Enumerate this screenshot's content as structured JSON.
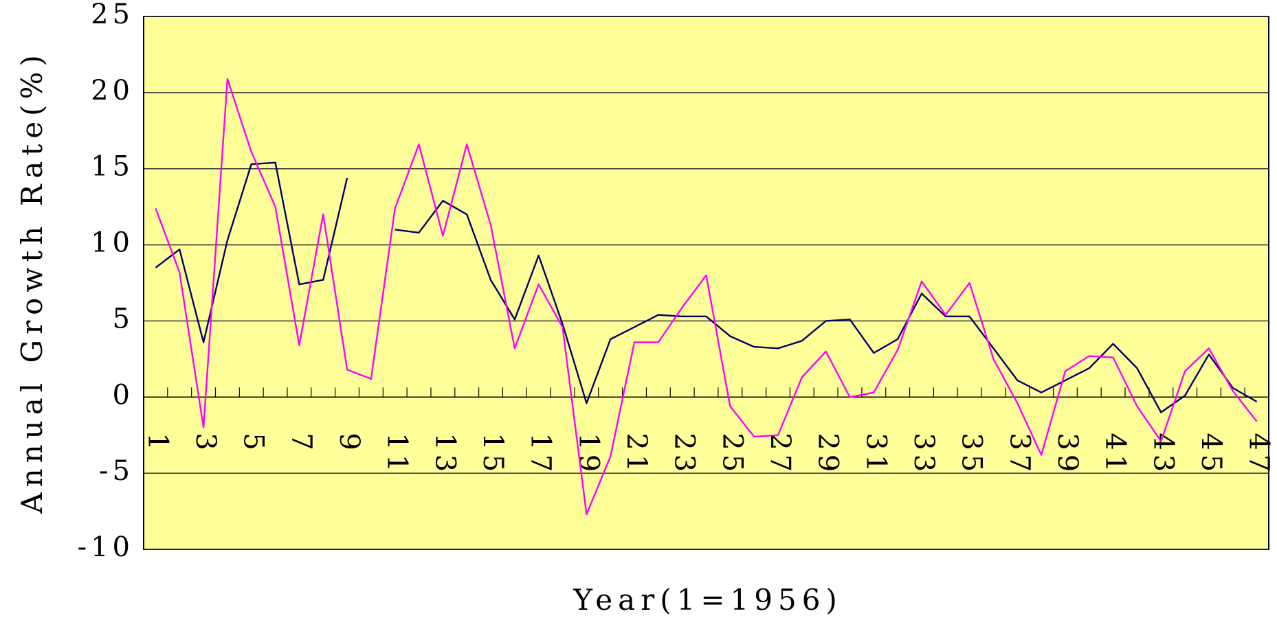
{
  "chart_data": {
    "type": "line",
    "x_label": "Year(1=1956)",
    "y_label": "Annual Growth Rate(%)",
    "categories": [
      "1",
      null,
      "3",
      null,
      "5",
      null,
      "7",
      null,
      "9",
      null,
      "11",
      null,
      "13",
      null,
      "15",
      null,
      "17",
      null,
      "19",
      null,
      "21",
      null,
      "23",
      null,
      "25",
      null,
      "27",
      null,
      "29",
      null,
      "31",
      null,
      "33",
      null,
      "35",
      null,
      "37",
      null,
      "39",
      null,
      "41",
      null,
      "43",
      null,
      "45",
      null,
      "47"
    ],
    "series": [
      {
        "color": "#000066",
        "values": [
          8.5,
          9.7,
          3.6,
          10.3,
          15.3,
          15.4,
          7.4,
          7.7,
          14.4,
          null,
          11.0,
          10.8,
          12.9,
          12.0,
          7.7,
          5.1,
          9.3,
          4.8,
          -0.4,
          3.8,
          4.6,
          5.4,
          5.3,
          5.3,
          4.0,
          3.3,
          3.2,
          3.7,
          5.0,
          5.1,
          2.9,
          3.8,
          6.8,
          5.3,
          5.3,
          3.2,
          1.1,
          0.3,
          1.1,
          1.9,
          3.5,
          1.9,
          -1.0,
          0.1,
          2.8,
          0.6,
          -0.3
        ]
      },
      {
        "color": "#ff00ff",
        "values": [
          12.4,
          8.2,
          -2.0,
          20.9,
          16.1,
          12.5,
          3.4,
          12.0,
          1.8,
          1.2,
          12.4,
          16.6,
          10.6,
          16.6,
          11.3,
          3.2,
          7.4,
          4.6,
          -7.7,
          -3.9,
          3.6,
          3.6,
          5.9,
          8.0,
          -0.6,
          -2.6,
          -2.5,
          1.3,
          3.0,
          0.0,
          0.3,
          3.1,
          7.6,
          5.4,
          7.5,
          2.5,
          -0.4,
          -3.8,
          1.7,
          2.7,
          2.6,
          -0.6,
          -2.9,
          1.7,
          3.2,
          0.4,
          -1.6
        ]
      }
    ],
    "ylim": [
      -10,
      25
    ],
    "yticks": [
      -10,
      -5,
      0,
      5,
      10,
      15,
      20,
      25
    ],
    "grid": true,
    "background": "#ffff99"
  }
}
